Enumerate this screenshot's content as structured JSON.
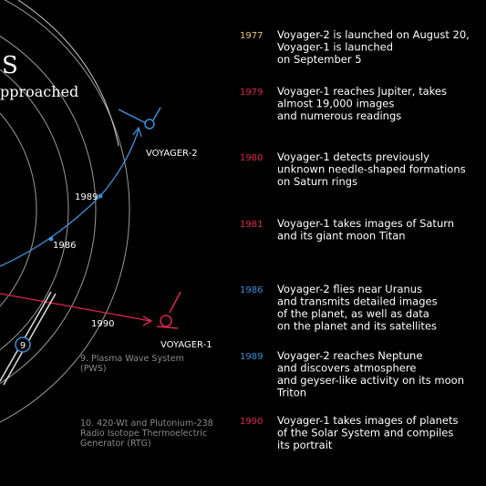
{
  "header": {
    "title": "S",
    "subtitle": "pproached"
  },
  "diagram": {
    "voyager2": {
      "label": "VOYAGER-2",
      "points": [
        "1989",
        "1986"
      ],
      "color": "#3a8fd6"
    },
    "voyager1": {
      "label": "VOYAGER-1",
      "points": [
        "1990"
      ],
      "color": "#e0264a"
    },
    "callout": "9",
    "parts": [
      {
        "lines": [
          "9. Plasma Wave System",
          "(PWS)"
        ]
      },
      {
        "lines": [
          "10. 420-Wt and Plutonium-238",
          "Radio Isotope Thermoelectric",
          "Generator (RTG)"
        ]
      }
    ]
  },
  "timeline": [
    {
      "year": "1977",
      "color": "#e8c96a",
      "lines": [
        "Voyager-2 is launched on August 20,",
        "Voyager-1 is launched",
        "on September 5"
      ]
    },
    {
      "year": "1979",
      "color": "#e0264a",
      "lines": [
        "Voyager-1 reaches Jupiter, takes",
        "almost 19,000 images",
        "and numerous readings"
      ]
    },
    {
      "year": "1980",
      "color": "#e0264a",
      "lines": [
        "Voyager-1 detects previously",
        "unknown needle-shaped formations",
        "on Saturn rings"
      ]
    },
    {
      "year": "1981",
      "color": "#e0264a",
      "lines": [
        "Voyager-1 takes images of Saturn",
        "and its giant moon Titan"
      ]
    },
    {
      "year": "1986",
      "color": "#3a8fd6",
      "lines": [
        "Voyager-2 flies near Uranus",
        "and transmits detailed images",
        "of the planet, as well as data",
        "on the planet and its satellites"
      ]
    },
    {
      "year": "1989",
      "color": "#3a8fd6",
      "lines": [
        "Voyager-2 reaches Neptune",
        "and discovers atmosphere",
        "and geyser-like activity on its moon",
        "Triton"
      ]
    },
    {
      "year": "1990",
      "color": "#e0264a",
      "lines": [
        "Voyager-1 takes images of planets",
        "of the Solar System and compiles",
        "its portrait"
      ]
    }
  ]
}
